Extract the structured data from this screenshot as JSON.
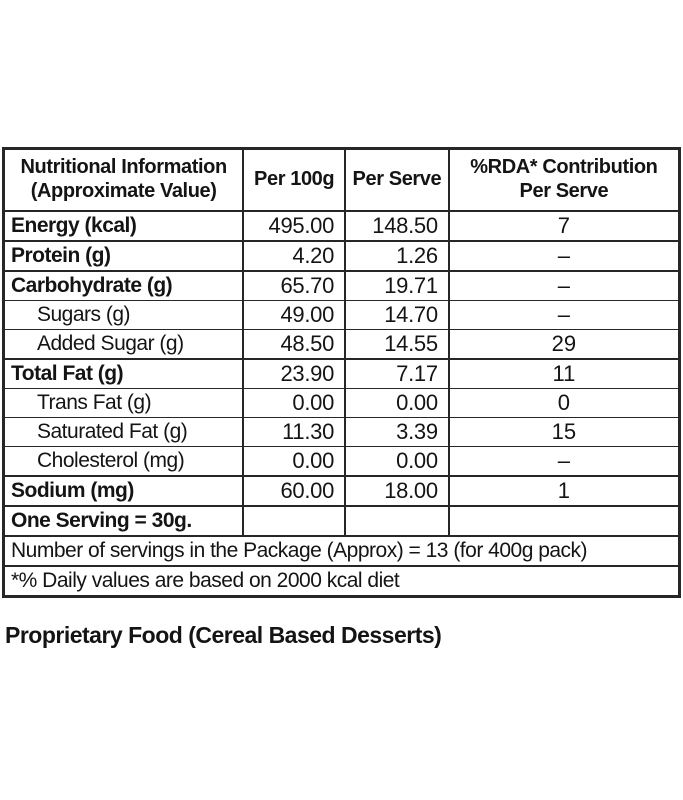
{
  "table": {
    "header": {
      "nutrient_line1": "Nutritional Information",
      "nutrient_line2": "(Approximate Value)",
      "per_100g": "Per 100g",
      "per_serve": "Per Serve",
      "rda_line1": "%RDA* Contribution",
      "rda_line2": "Per Serve"
    },
    "rows": [
      {
        "label": "Energy (kcal)",
        "per_100g": "495.00",
        "per_serve": "148.50",
        "rda": "7"
      },
      {
        "label": "Protein (g)",
        "per_100g": "4.20",
        "per_serve": "1.26",
        "rda": "–"
      },
      {
        "label": "Carbohydrate (g)",
        "per_100g": "65.70",
        "per_serve": "19.71",
        "rda": "–"
      },
      {
        "label": "Sugars (g)",
        "per_100g": "49.00",
        "per_serve": "14.70",
        "rda": "–"
      },
      {
        "label": "Added Sugar (g)",
        "per_100g": "48.50",
        "per_serve": "14.55",
        "rda": "29"
      },
      {
        "label": "Total Fat (g)",
        "per_100g": "23.90",
        "per_serve": "7.17",
        "rda": "11"
      },
      {
        "label": "Trans Fat (g)",
        "per_100g": "0.00",
        "per_serve": "0.00",
        "rda": "0"
      },
      {
        "label": "Saturated Fat (g)",
        "per_100g": "11.30",
        "per_serve": "3.39",
        "rda": "15"
      },
      {
        "label": "Cholesterol (mg)",
        "per_100g": "0.00",
        "per_serve": "0.00",
        "rda": "–"
      },
      {
        "label": "Sodium (mg)",
        "per_100g": "60.00",
        "per_serve": "18.00",
        "rda": "1"
      },
      {
        "label": "One Serving = 30g.",
        "per_100g": "",
        "per_serve": "",
        "rda": ""
      }
    ],
    "footer_rows": [
      "Number of servings in the Package (Approx) = 13 (for 400g pack)",
      "*% Daily values are based on 2000 kcal diet"
    ]
  },
  "caption": "Proprietary Food (Cereal Based Desserts)",
  "colors": {
    "border": "#262626",
    "text": "#141414",
    "background": "#ffffff"
  }
}
